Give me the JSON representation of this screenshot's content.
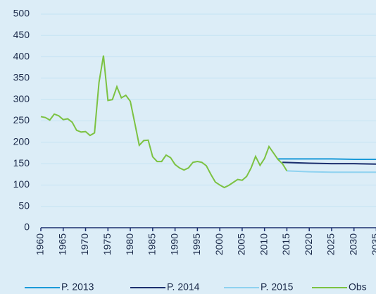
{
  "chart_data": {
    "type": "line",
    "series": [
      {
        "name": "P. 2013",
        "color": "#1b9ad8",
        "x": [
          2013,
          2020,
          2025,
          2030,
          2035
        ],
        "values": [
          161,
          161,
          161,
          160,
          160
        ]
      },
      {
        "name": "P. 2014",
        "color": "#1c2f6e",
        "x": [
          2014,
          2020,
          2025,
          2030,
          2035
        ],
        "values": [
          153,
          151,
          150,
          150,
          149
        ]
      },
      {
        "name": "P. 2015",
        "color": "#8fd2f0",
        "x": [
          2015,
          2020,
          2025,
          2030,
          2035
        ],
        "values": [
          133,
          131,
          130,
          130,
          130
        ]
      },
      {
        "name": "Obs",
        "color": "#7cc242",
        "x": [
          1960,
          1961,
          1962,
          1963,
          1964,
          1965,
          1966,
          1967,
          1968,
          1969,
          1970,
          1971,
          1972,
          1973,
          1974,
          1975,
          1976,
          1977,
          1978,
          1979,
          1980,
          1981,
          1982,
          1983,
          1984,
          1985,
          1986,
          1987,
          1988,
          1989,
          1990,
          1991,
          1992,
          1993,
          1994,
          1995,
          1996,
          1997,
          1998,
          1999,
          2000,
          2001,
          2002,
          2003,
          2004,
          2005,
          2006,
          2007,
          2008,
          2009,
          2010,
          2011,
          2012,
          2013,
          2014,
          2015
        ],
        "values": [
          260,
          258,
          252,
          266,
          262,
          253,
          255,
          247,
          228,
          224,
          225,
          216,
          222,
          340,
          403,
          298,
          300,
          330,
          304,
          310,
          296,
          245,
          193,
          204,
          205,
          166,
          155,
          155,
          170,
          164,
          148,
          140,
          135,
          140,
          153,
          155,
          153,
          145,
          125,
          107,
          100,
          94,
          99,
          106,
          113,
          111,
          120,
          140,
          167,
          146,
          162,
          190,
          175,
          160,
          150,
          133
        ]
      }
    ],
    "xlim": [
      1960,
      2035
    ],
    "xticks": [
      1960,
      1965,
      1970,
      1975,
      1980,
      1985,
      1990,
      1995,
      2000,
      2005,
      2010,
      2015,
      2020,
      2025,
      2030,
      2035
    ],
    "ylim": [
      0,
      500
    ],
    "yticks": [
      0,
      50,
      100,
      150,
      200,
      250,
      300,
      350,
      400,
      450,
      500
    ],
    "grid": true,
    "legend": "bottom"
  }
}
